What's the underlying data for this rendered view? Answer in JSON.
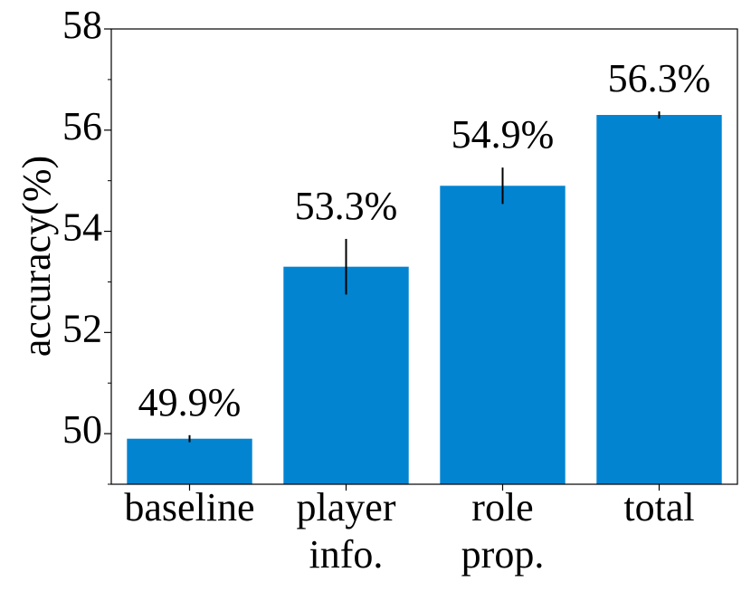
{
  "chart_data": {
    "type": "bar",
    "ylabel": "accuracy(%)",
    "categories": [
      [
        "baseline"
      ],
      [
        "player",
        "info."
      ],
      [
        "role",
        "prop."
      ],
      [
        "total"
      ]
    ],
    "values": [
      49.9,
      53.3,
      54.9,
      56.3
    ],
    "value_labels": [
      "49.9%",
      "53.3%",
      "54.9%",
      "56.3%"
    ],
    "errors": [
      0.07,
      0.55,
      0.36,
      0.07
    ],
    "color": "#0384d1",
    "ylim": [
      49,
      58
    ],
    "yticks": [
      50,
      52,
      54,
      56,
      58
    ],
    "yminorticks": [
      49,
      51,
      53,
      55,
      57
    ]
  }
}
